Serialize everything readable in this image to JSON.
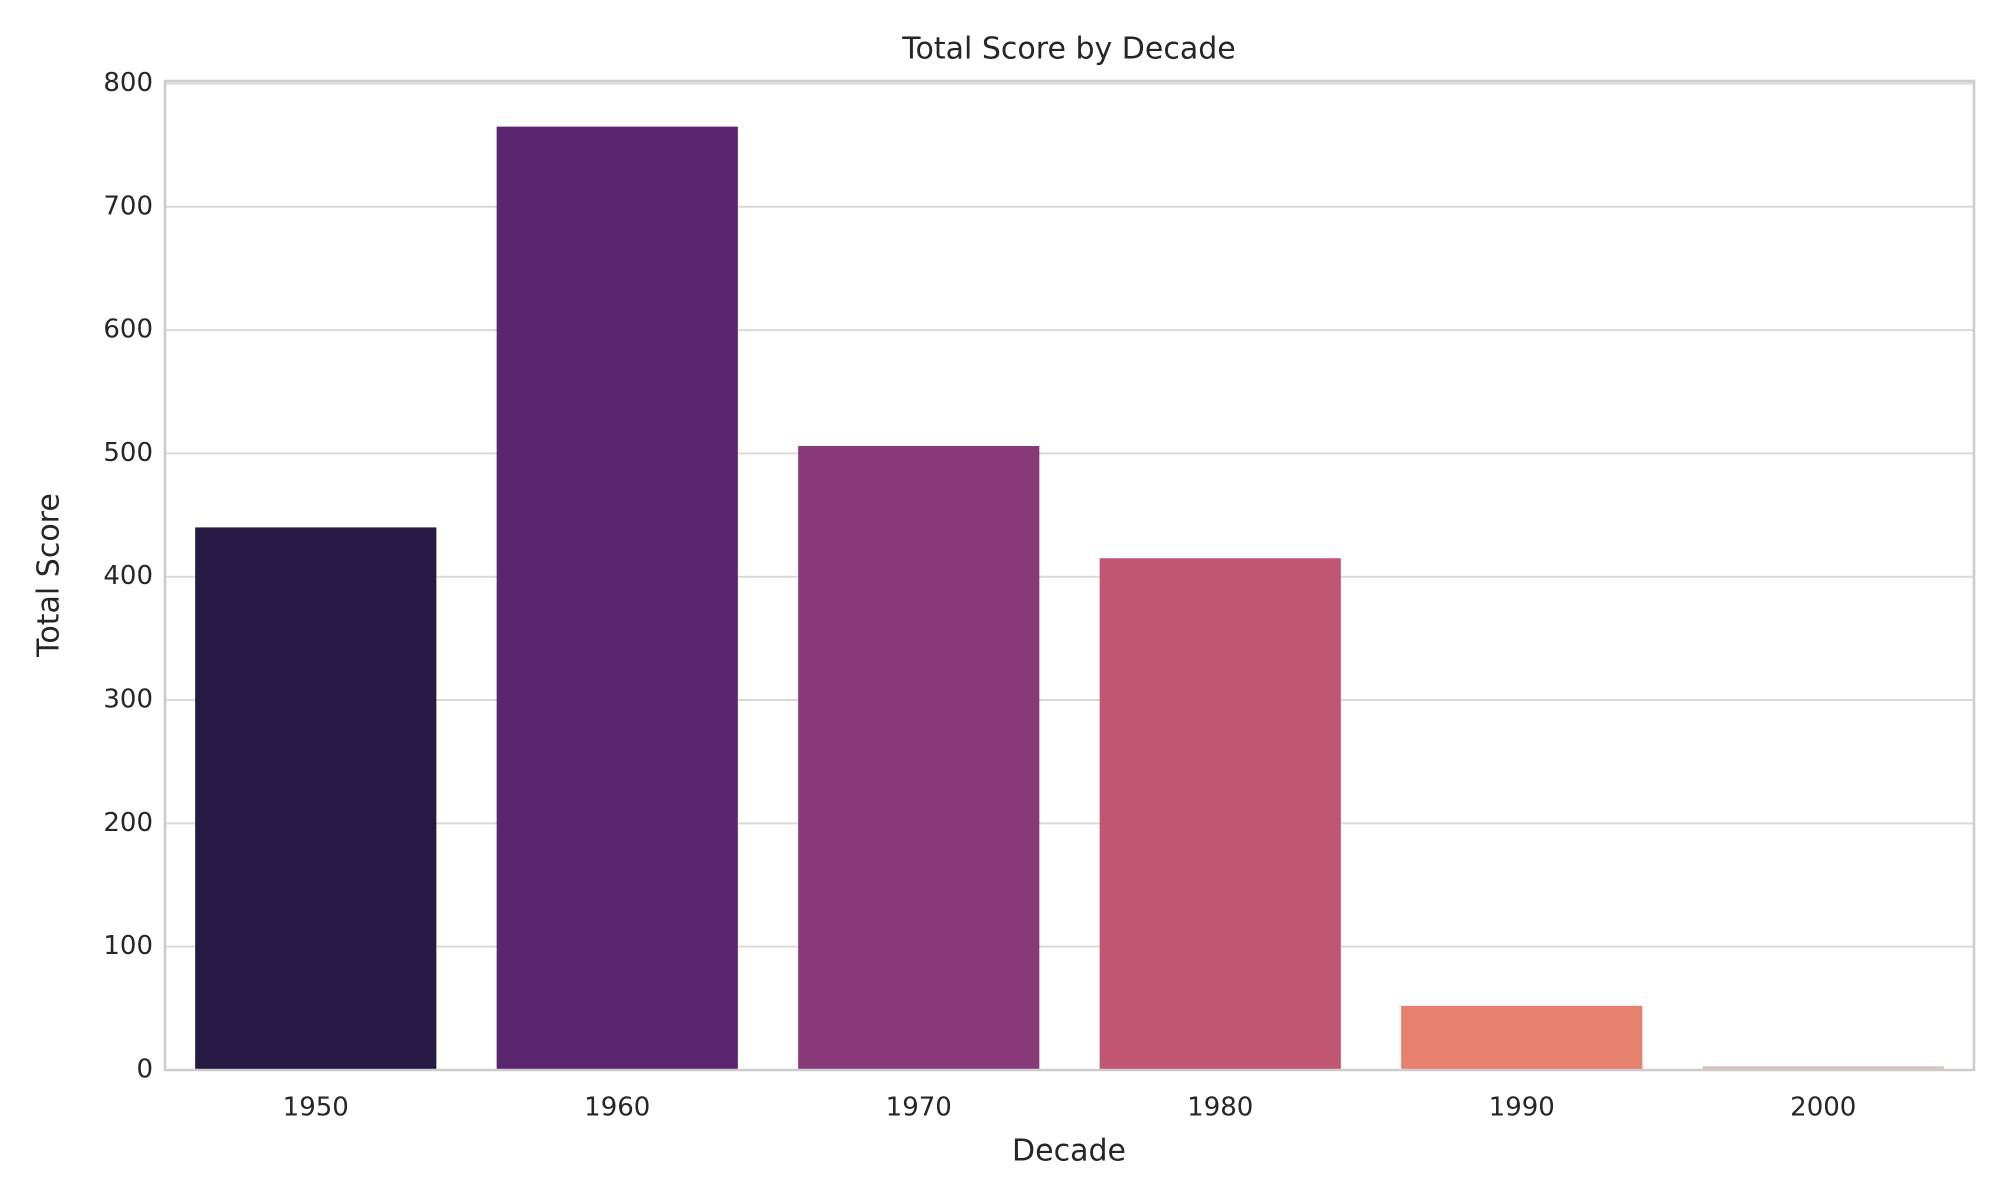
{
  "chart_data": {
    "type": "bar",
    "title": "Total Score by Decade",
    "x_label": "Decade",
    "y_label": "Total Score",
    "categories": [
      "1950",
      "1960",
      "1970",
      "1980",
      "1990",
      "2000"
    ],
    "values": [
      440,
      765,
      506,
      415,
      52,
      3
    ],
    "colors": [
      "#261a45",
      "#5b2570",
      "#883a78",
      "#c05672",
      "#e6816e",
      "#dcc1b6"
    ],
    "ylim": [
      0,
      802
    ],
    "yticks": [
      0,
      100,
      200,
      300,
      400,
      500,
      600,
      700,
      800
    ],
    "grid": true
  }
}
